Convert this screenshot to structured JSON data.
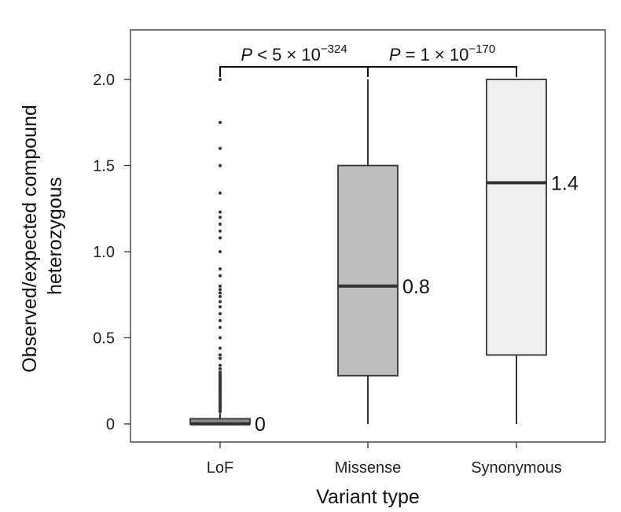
{
  "chart_data": {
    "type": "box",
    "xlabel": "Variant type",
    "ylabel_lines": [
      "Observed/expected compound",
      "heterozygous"
    ],
    "ylim": [
      -0.1,
      2.3
    ],
    "yticks": [
      {
        "value": 0,
        "label": "0"
      },
      {
        "value": 0.5,
        "label": "0.5"
      },
      {
        "value": 1.0,
        "label": "1.0"
      },
      {
        "value": 1.5,
        "label": "1.5"
      },
      {
        "value": 2.0,
        "label": "2.0"
      }
    ],
    "categories": [
      "LoF",
      "Missense",
      "Synonymous"
    ],
    "boxes": [
      {
        "category": "LoF",
        "min": 0,
        "q1": 0,
        "median": 0,
        "q3": 0.03,
        "max": 0.06,
        "median_label": "0",
        "fill": "#888888",
        "outliers": [
          2.0,
          1.75,
          1.6,
          1.5,
          1.34,
          1.23,
          1.2,
          1.16,
          1.12,
          1.08,
          1.0,
          0.9,
          0.86,
          0.8,
          0.78,
          0.76,
          0.74,
          0.71,
          0.68,
          0.64,
          0.6,
          0.56,
          0.5,
          0.44,
          0.4,
          0.38,
          0.34,
          0.32,
          0.3,
          0.29,
          0.28,
          0.27,
          0.26,
          0.25,
          0.24,
          0.23,
          0.22,
          0.21,
          0.2,
          0.19,
          0.18,
          0.17,
          0.16,
          0.15,
          0.14,
          0.13,
          0.12,
          0.11,
          0.1,
          0.09,
          0.08,
          0.07
        ]
      },
      {
        "category": "Missense",
        "min": 0,
        "q1": 0.28,
        "median": 0.8,
        "q3": 1.5,
        "max": 2.0,
        "median_label": "0.8",
        "fill": "#bdbdbd",
        "outliers": []
      },
      {
        "category": "Synonymous",
        "min": 0,
        "q1": 0.4,
        "median": 1.4,
        "q3": 2.0,
        "max": 2.0,
        "median_label": "1.4",
        "fill": "#efefef",
        "outliers": []
      }
    ],
    "comparisons": [
      {
        "from": "LoF",
        "to": "Missense",
        "p_prefix": "P",
        "p_text": " < 5 × 10",
        "p_exponent": "−324"
      },
      {
        "from": "Missense",
        "to": "Synonymous",
        "p_prefix": "P",
        "p_text": " = 1 × 10",
        "p_exponent": "−170"
      }
    ]
  }
}
